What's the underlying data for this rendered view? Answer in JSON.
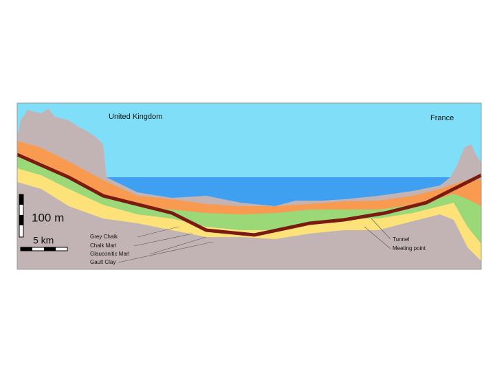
{
  "regions": {
    "left": "United Kingdom",
    "right": "France"
  },
  "scale": {
    "height": "100 m",
    "distance": "5 km"
  },
  "legend": {
    "layers": [
      "Grey Chalk",
      "Chalk Marl",
      "Glauconitic Marl",
      "Gault Clay"
    ],
    "features": [
      "Tunnel",
      "Meeting point"
    ]
  }
}
